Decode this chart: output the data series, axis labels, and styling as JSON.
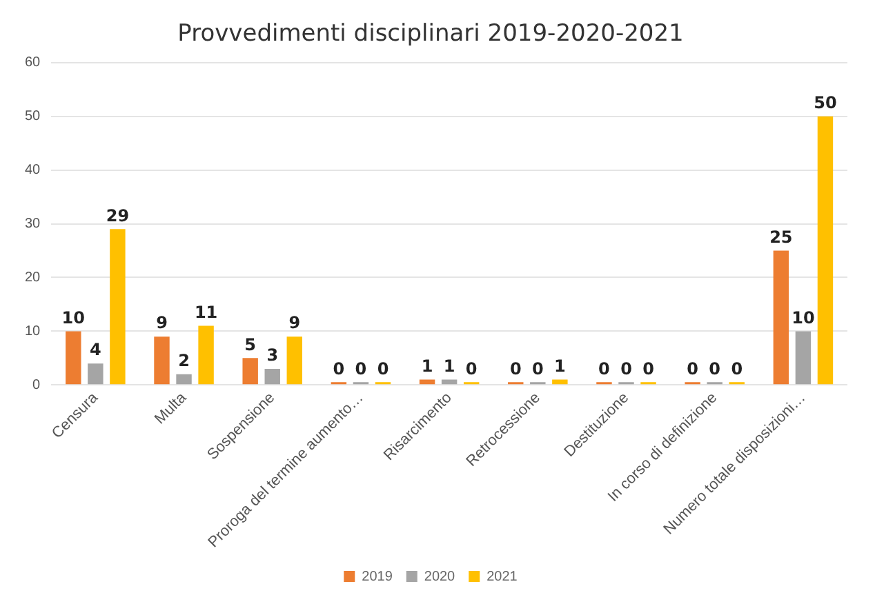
{
  "chart_data": {
    "type": "bar",
    "title": "Provvedimenti disciplinari 2019-2020-2021",
    "categories": [
      "Censura",
      "Multa",
      "Sospensione",
      "Proroga del termine aumento…",
      "Risarcimento",
      "Retrocessione",
      "Destituzione",
      "In corso di definizione",
      "Numero totale disposizioni…"
    ],
    "series": [
      {
        "name": "2019",
        "color": "#ed7d31",
        "values": [
          10,
          9,
          5,
          0,
          1,
          0,
          0,
          0,
          25
        ]
      },
      {
        "name": "2020",
        "color": "#a5a5a5",
        "values": [
          4,
          2,
          3,
          0,
          1,
          0,
          0,
          0,
          10
        ]
      },
      {
        "name": "2021",
        "color": "#ffc000",
        "values": [
          29,
          11,
          9,
          0,
          0,
          1,
          0,
          0,
          50
        ]
      }
    ],
    "ylim": [
      0,
      60
    ],
    "yticks": [
      0,
      10,
      20,
      30,
      40,
      50,
      60
    ],
    "grid": "y",
    "legend": "bottom",
    "data_labels": true
  }
}
